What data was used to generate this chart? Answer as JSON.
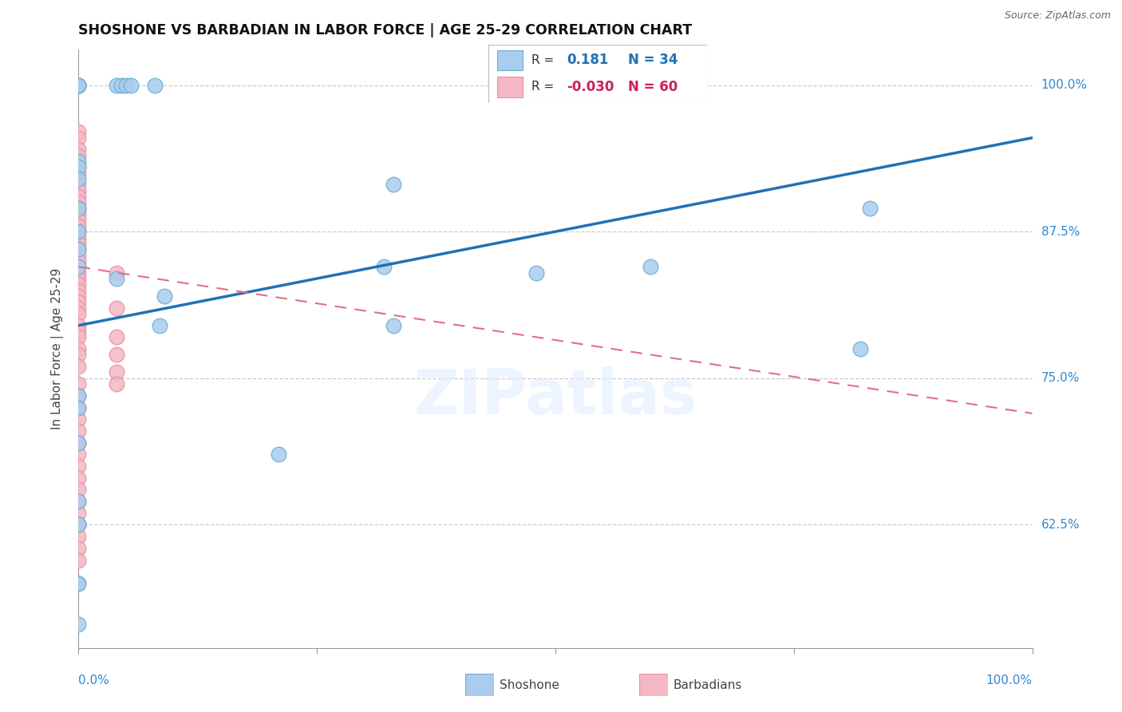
{
  "title": "SHOSHONE VS BARBADIAN IN LABOR FORCE | AGE 25-29 CORRELATION CHART",
  "source_text": "Source: ZipAtlas.com",
  "ylabel": "In Labor Force | Age 25-29",
  "ytick_labels": [
    "100.0%",
    "87.5%",
    "75.0%",
    "62.5%"
  ],
  "xmin": 0.0,
  "xmax": 1.0,
  "ymin": 0.52,
  "ymax": 1.03,
  "watermark": "ZIPatlas",
  "shoshone_color": "#6baed6",
  "shoshone_fill": "#aaccee",
  "barbadian_color": "#e88fa0",
  "barbadian_fill": "#f4b8c4",
  "trend_blue": "#2171b5",
  "trend_pink": "#e07080",
  "shoshone_points_x": [
    0.0,
    0.0,
    0.0,
    0.04,
    0.045,
    0.05,
    0.055,
    0.08,
    0.0,
    0.0,
    0.0,
    0.0,
    0.0,
    0.0,
    0.0,
    0.04,
    0.09,
    0.085,
    0.21,
    0.33,
    0.32,
    0.33,
    0.48,
    0.83,
    0.82,
    0.6,
    0.0,
    0.0,
    0.0,
    0.0,
    0.0,
    0.0,
    0.0,
    0.0
  ],
  "shoshone_points_y": [
    1.0,
    1.0,
    1.0,
    1.0,
    1.0,
    1.0,
    1.0,
    1.0,
    0.935,
    0.93,
    0.92,
    0.895,
    0.875,
    0.86,
    0.845,
    0.835,
    0.82,
    0.795,
    0.685,
    0.915,
    0.845,
    0.795,
    0.84,
    0.895,
    0.775,
    0.845,
    0.735,
    0.725,
    0.695,
    0.645,
    0.625,
    0.575,
    0.575,
    0.54
  ],
  "barbadian_points_x": [
    0.0,
    0.0,
    0.0,
    0.0,
    0.0,
    0.0,
    0.0,
    0.0,
    0.0,
    0.0,
    0.0,
    0.0,
    0.0,
    0.0,
    0.0,
    0.0,
    0.0,
    0.0,
    0.0,
    0.0,
    0.0,
    0.0,
    0.0,
    0.0,
    0.0,
    0.0,
    0.0,
    0.0,
    0.0,
    0.0,
    0.0,
    0.0,
    0.0,
    0.0,
    0.0,
    0.0,
    0.0,
    0.0,
    0.0,
    0.0,
    0.0,
    0.0,
    0.0,
    0.0,
    0.0,
    0.0,
    0.0,
    0.0,
    0.0,
    0.0,
    0.0,
    0.0,
    0.04,
    0.04,
    0.04,
    0.04,
    0.04,
    0.04,
    0.0,
    0.0
  ],
  "barbadian_points_y": [
    1.0,
    1.0,
    0.96,
    0.955,
    0.945,
    0.94,
    0.93,
    0.925,
    0.915,
    0.91,
    0.905,
    0.9,
    0.895,
    0.89,
    0.885,
    0.88,
    0.875,
    0.87,
    0.865,
    0.86,
    0.855,
    0.85,
    0.845,
    0.84,
    0.835,
    0.83,
    0.825,
    0.82,
    0.815,
    0.81,
    0.805,
    0.795,
    0.79,
    0.785,
    0.775,
    0.77,
    0.76,
    0.745,
    0.735,
    0.725,
    0.715,
    0.705,
    0.695,
    0.685,
    0.675,
    0.665,
    0.655,
    0.645,
    0.635,
    0.625,
    0.615,
    0.605,
    0.84,
    0.81,
    0.785,
    0.77,
    0.755,
    0.745,
    0.625,
    0.595
  ],
  "blue_line_x": [
    0.0,
    1.0
  ],
  "blue_line_y": [
    0.795,
    0.955
  ],
  "pink_line_x": [
    0.0,
    1.0
  ],
  "pink_line_y": [
    0.845,
    0.72
  ],
  "gridline_y": [
    1.0,
    0.875,
    0.75,
    0.625
  ],
  "figsize": [
    14.06,
    8.92
  ],
  "dpi": 100
}
